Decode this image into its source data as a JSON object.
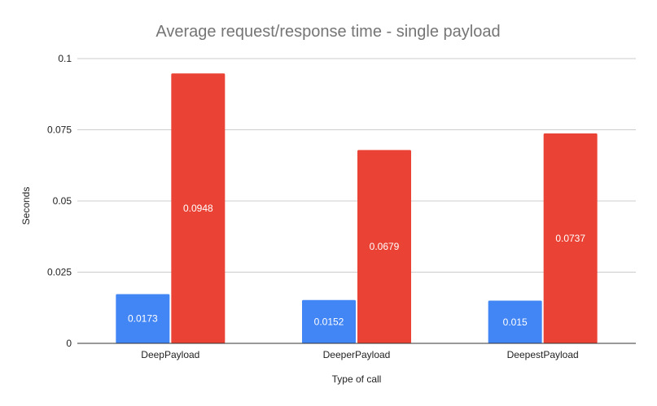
{
  "chart_data": {
    "type": "bar",
    "title": "Average request/response time - single payload",
    "xlabel": "Type of call",
    "ylabel": "Seconds",
    "categories": [
      "DeepPayload",
      "DeeperPayload",
      "DeepestPayload"
    ],
    "series": [
      {
        "values": [
          0.0173,
          0.0152,
          0.015
        ],
        "color": "#4285F4"
      },
      {
        "values": [
          0.0948,
          0.0679,
          0.0737
        ],
        "color": "#EA4335"
      }
    ],
    "ylim": [
      0,
      0.1
    ],
    "yticks": [
      "0",
      "0.025",
      "0.05",
      "0.075",
      "0.1"
    ],
    "grid": true,
    "legend": "none",
    "data_labels": [
      [
        "0.0173",
        "0.0152",
        "0.015"
      ],
      [
        "0.0948",
        "0.0679",
        "0.0737"
      ]
    ]
  }
}
